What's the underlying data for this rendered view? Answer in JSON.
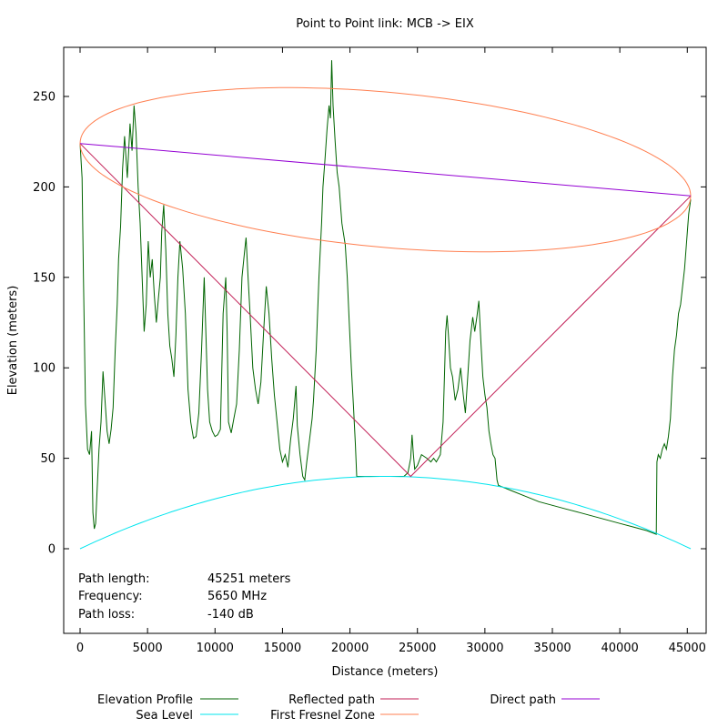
{
  "chart_data": {
    "type": "line",
    "title": "Point to Point link: MCB -> EIX",
    "xlabel": "Distance (meters)",
    "ylabel": "Elevation (meters)",
    "xlim": [
      -1200,
      46000
    ],
    "ylim": [
      -50,
      275
    ],
    "xticks": [
      0,
      5000,
      10000,
      15000,
      20000,
      25000,
      30000,
      35000,
      40000,
      45000
    ],
    "yticks": [
      0,
      50,
      100,
      150,
      200,
      250
    ],
    "grid": false,
    "legend_position": "bottom",
    "info": [
      {
        "label": "Path length:",
        "value": "45251 meters"
      },
      {
        "label": "Frequency:",
        "value": "5650 MHz"
      },
      {
        "label": "Path loss:",
        "value": "-140 dB"
      }
    ],
    "series": [
      {
        "name": "Elevation Profile",
        "color": "#006400",
        "points": [
          [
            0,
            224
          ],
          [
            150,
            205
          ],
          [
            250,
            150
          ],
          [
            400,
            80
          ],
          [
            550,
            55
          ],
          [
            700,
            52
          ],
          [
            850,
            65
          ],
          [
            950,
            20
          ],
          [
            1050,
            11
          ],
          [
            1150,
            14
          ],
          [
            1250,
            30
          ],
          [
            1400,
            55
          ],
          [
            1550,
            70
          ],
          [
            1700,
            98
          ],
          [
            1850,
            82
          ],
          [
            2000,
            65
          ],
          [
            2150,
            58
          ],
          [
            2300,
            66
          ],
          [
            2450,
            78
          ],
          [
            2600,
            110
          ],
          [
            2750,
            135
          ],
          [
            2850,
            160
          ],
          [
            3000,
            178
          ],
          [
            3150,
            210
          ],
          [
            3300,
            228
          ],
          [
            3500,
            205
          ],
          [
            3700,
            235
          ],
          [
            3850,
            220
          ],
          [
            4000,
            245
          ],
          [
            4150,
            230
          ],
          [
            4300,
            200
          ],
          [
            4450,
            180
          ],
          [
            4600,
            150
          ],
          [
            4750,
            120
          ],
          [
            4900,
            135
          ],
          [
            5050,
            170
          ],
          [
            5200,
            150
          ],
          [
            5350,
            160
          ],
          [
            5500,
            140
          ],
          [
            5650,
            125
          ],
          [
            5800,
            138
          ],
          [
            5950,
            150
          ],
          [
            6050,
            175
          ],
          [
            6200,
            190
          ],
          [
            6350,
            165
          ],
          [
            6500,
            130
          ],
          [
            6650,
            112
          ],
          [
            6800,
            105
          ],
          [
            6950,
            95
          ],
          [
            7100,
            118
          ],
          [
            7250,
            150
          ],
          [
            7400,
            170
          ],
          [
            7600,
            155
          ],
          [
            7800,
            130
          ],
          [
            8000,
            88
          ],
          [
            8200,
            70
          ],
          [
            8400,
            61
          ],
          [
            8600,
            62
          ],
          [
            8800,
            75
          ],
          [
            9000,
            110
          ],
          [
            9200,
            150
          ],
          [
            9300,
            125
          ],
          [
            9450,
            88
          ],
          [
            9600,
            70
          ],
          [
            9800,
            65
          ],
          [
            10000,
            62
          ],
          [
            10200,
            63
          ],
          [
            10400,
            66
          ],
          [
            10600,
            130
          ],
          [
            10800,
            150
          ],
          [
            10900,
            120
          ],
          [
            11000,
            70
          ],
          [
            11200,
            64
          ],
          [
            11400,
            72
          ],
          [
            11600,
            80
          ],
          [
            11800,
            110
          ],
          [
            12000,
            150
          ],
          [
            12200,
            165
          ],
          [
            12300,
            172
          ],
          [
            12450,
            150
          ],
          [
            12600,
            130
          ],
          [
            12800,
            100
          ],
          [
            13000,
            88
          ],
          [
            13200,
            80
          ],
          [
            13400,
            92
          ],
          [
            13600,
            120
          ],
          [
            13800,
            145
          ],
          [
            14000,
            130
          ],
          [
            14200,
            105
          ],
          [
            14400,
            85
          ],
          [
            14600,
            70
          ],
          [
            14800,
            55
          ],
          [
            15000,
            48
          ],
          [
            15200,
            52
          ],
          [
            15400,
            45
          ],
          [
            15600,
            60
          ],
          [
            15800,
            72
          ],
          [
            16000,
            90
          ],
          [
            16100,
            68
          ],
          [
            16300,
            52
          ],
          [
            16500,
            40
          ],
          [
            16650,
            38
          ],
          [
            16800,
            48
          ],
          [
            17000,
            60
          ],
          [
            17200,
            72
          ],
          [
            17300,
            82
          ],
          [
            17500,
            110
          ],
          [
            17700,
            150
          ],
          [
            17900,
            180
          ],
          [
            18000,
            200
          ],
          [
            18150,
            215
          ],
          [
            18300,
            232
          ],
          [
            18450,
            245
          ],
          [
            18550,
            238
          ],
          [
            18650,
            270
          ],
          [
            18750,
            245
          ],
          [
            18900,
            225
          ],
          [
            19050,
            208
          ],
          [
            19200,
            200
          ],
          [
            19300,
            190
          ],
          [
            19400,
            180
          ],
          [
            19500,
            175
          ],
          [
            19650,
            168
          ],
          [
            19800,
            150
          ],
          [
            19950,
            125
          ],
          [
            20100,
            100
          ],
          [
            20250,
            80
          ],
          [
            20400,
            58
          ],
          [
            20500,
            40
          ],
          [
            21500,
            40
          ],
          [
            22500,
            40
          ],
          [
            23500,
            40
          ],
          [
            24000,
            40
          ],
          [
            24300,
            42
          ],
          [
            24500,
            50
          ],
          [
            24600,
            63
          ],
          [
            24700,
            52
          ],
          [
            24800,
            44
          ],
          [
            25000,
            46
          ],
          [
            25300,
            52
          ],
          [
            25700,
            50
          ],
          [
            26000,
            48
          ],
          [
            26200,
            50
          ],
          [
            26400,
            48
          ],
          [
            26700,
            52
          ],
          [
            26900,
            70
          ],
          [
            27000,
            95
          ],
          [
            27100,
            120
          ],
          [
            27200,
            129
          ],
          [
            27300,
            118
          ],
          [
            27450,
            100
          ],
          [
            27600,
            95
          ],
          [
            27800,
            82
          ],
          [
            28000,
            88
          ],
          [
            28200,
            100
          ],
          [
            28400,
            85
          ],
          [
            28550,
            75
          ],
          [
            28700,
            92
          ],
          [
            28900,
            115
          ],
          [
            29100,
            128
          ],
          [
            29250,
            120
          ],
          [
            29400,
            128
          ],
          [
            29550,
            137
          ],
          [
            29700,
            115
          ],
          [
            29850,
            95
          ],
          [
            30000,
            85
          ],
          [
            30150,
            78
          ],
          [
            30300,
            65
          ],
          [
            30450,
            58
          ],
          [
            30600,
            52
          ],
          [
            30750,
            50
          ],
          [
            30900,
            38
          ],
          [
            31000,
            35
          ],
          [
            32000,
            32
          ],
          [
            33000,
            29
          ],
          [
            34000,
            26
          ],
          [
            35000,
            24
          ],
          [
            36000,
            22
          ],
          [
            37000,
            20
          ],
          [
            38000,
            18
          ],
          [
            39000,
            16
          ],
          [
            40000,
            14
          ],
          [
            41000,
            12
          ],
          [
            42000,
            10
          ],
          [
            42700,
            8
          ],
          [
            42750,
            48
          ],
          [
            42850,
            52
          ],
          [
            43000,
            50
          ],
          [
            43150,
            55
          ],
          [
            43300,
            58
          ],
          [
            43450,
            55
          ],
          [
            43600,
            62
          ],
          [
            43750,
            72
          ],
          [
            43900,
            95
          ],
          [
            44050,
            110
          ],
          [
            44200,
            118
          ],
          [
            44350,
            130
          ],
          [
            44500,
            135
          ],
          [
            44650,
            145
          ],
          [
            44800,
            155
          ],
          [
            44900,
            165
          ],
          [
            45000,
            175
          ],
          [
            45100,
            185
          ],
          [
            45251,
            193
          ]
        ]
      },
      {
        "name": "Sea Level",
        "color": "#00E5EE",
        "curve": "parabola",
        "x_range": [
          0,
          45251
        ],
        "peak_height": 40
      },
      {
        "name": "Reflected path",
        "color": "#C21E56",
        "points": [
          [
            0,
            224
          ],
          [
            24500,
            40
          ],
          [
            45251,
            195
          ]
        ]
      },
      {
        "name": "First Fresnel Zone",
        "color": "#FF7F50",
        "shape": "ellipse",
        "endpoints": [
          [
            0,
            224
          ],
          [
            45251,
            195
          ]
        ],
        "half_width": 43
      },
      {
        "name": "Direct path",
        "color": "#9400D3",
        "points": [
          [
            0,
            224
          ],
          [
            45251,
            195
          ]
        ]
      }
    ]
  }
}
